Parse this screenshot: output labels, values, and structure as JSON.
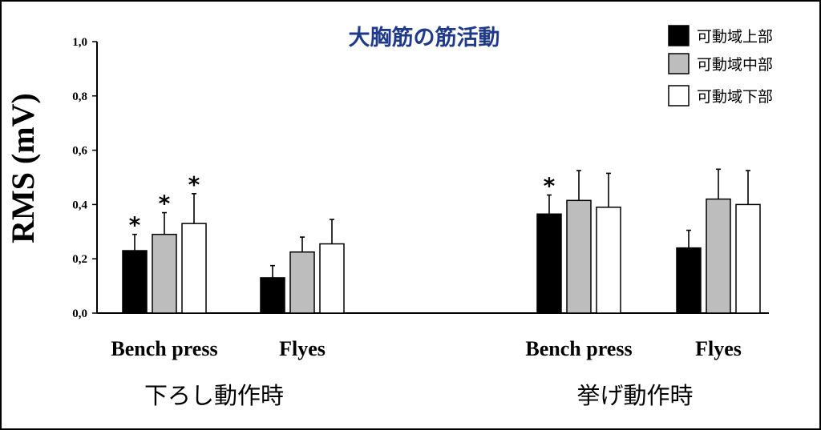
{
  "chart_data": {
    "type": "bar",
    "title": "大胸筋の筋活動",
    "ylabel": "RMS (mV)",
    "ylim": [
      0,
      1.0
    ],
    "yticks": [
      0.0,
      0.2,
      0.4,
      0.6,
      0.8,
      1.0
    ],
    "ytick_labels": [
      "0,0",
      "0,2",
      "0,4",
      "0,6",
      "0,8",
      "1,0"
    ],
    "legend_position": "top-right",
    "series": [
      {
        "name": "可動域上部",
        "color": "#000000"
      },
      {
        "name": "可動域中部",
        "color": "#bdbdbd"
      },
      {
        "name": "可動域下部",
        "color": "#ffffff"
      }
    ],
    "groups": [
      {
        "phase": "下ろし動作時",
        "categories": [
          {
            "label": "Bench press",
            "values": [
              0.23,
              0.29,
              0.33
            ],
            "errors": [
              0.06,
              0.08,
              0.11
            ],
            "significant": [
              true,
              true,
              true
            ]
          },
          {
            "label": "Flyes",
            "values": [
              0.13,
              0.225,
              0.255
            ],
            "errors": [
              0.045,
              0.055,
              0.09
            ],
            "significant": [
              false,
              false,
              false
            ]
          }
        ]
      },
      {
        "phase": "挙げ動作時",
        "categories": [
          {
            "label": "Bench press",
            "values": [
              0.365,
              0.415,
              0.39
            ],
            "errors": [
              0.07,
              0.11,
              0.125
            ],
            "significant": [
              true,
              false,
              false
            ]
          },
          {
            "label": "Flyes",
            "values": [
              0.24,
              0.42,
              0.4
            ],
            "errors": [
              0.065,
              0.11,
              0.125
            ],
            "significant": [
              false,
              false,
              false
            ]
          }
        ]
      }
    ],
    "significance_marker": "*"
  }
}
